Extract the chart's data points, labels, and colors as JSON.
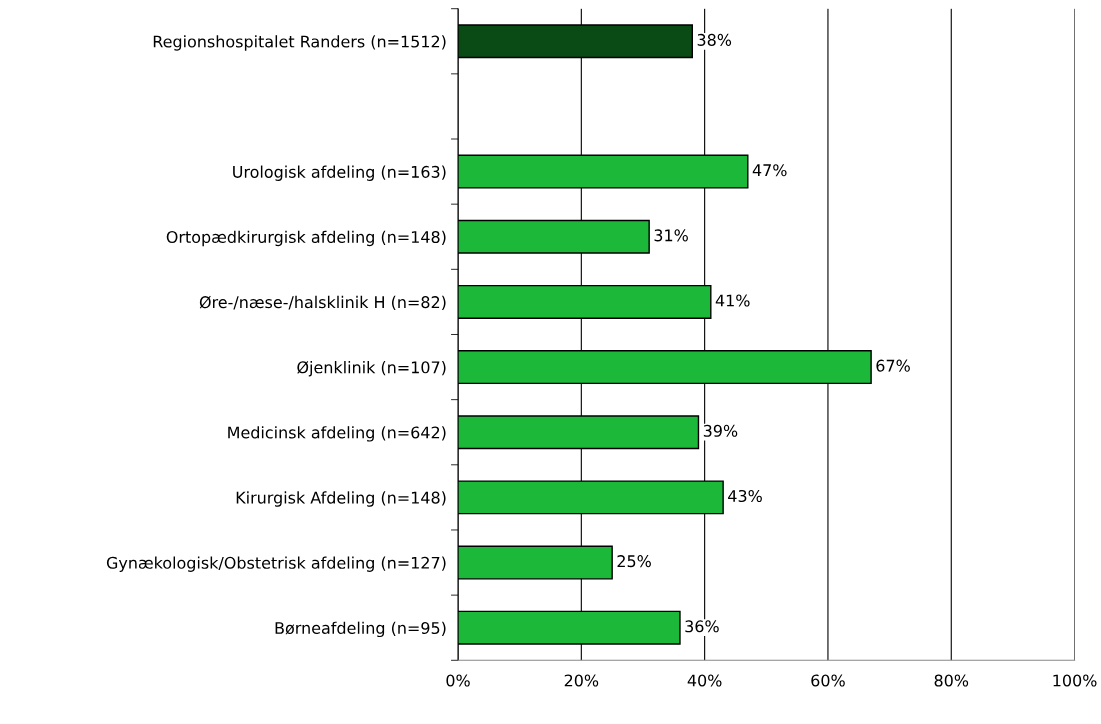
{
  "chart_data": {
    "type": "bar",
    "orientation": "horizontal",
    "categories": [
      "Regionshospitalet Randers (n=1512)",
      null,
      "Urologisk afdeling (n=163)",
      "Ortopædkirurgisk afdeling (n=148)",
      "Øre-/næse-/halsklinik H (n=82)",
      "Øjenklinik (n=107)",
      "Medicinsk afdeling (n=642)",
      "Kirurgisk Afdeling (n=148)",
      "Gynækologisk/Obstetrisk afdeling (n=127)",
      "Børneafdeling (n=95)"
    ],
    "values": [
      38,
      null,
      47,
      31,
      41,
      67,
      39,
      43,
      25,
      36
    ],
    "colors": [
      "#0a4a14",
      null,
      "#1cb83a",
      "#1cb83a",
      "#1cb83a",
      "#1cb83a",
      "#1cb83a",
      "#1cb83a",
      "#1cb83a",
      "#1cb83a"
    ],
    "value_labels": [
      "38%",
      null,
      "47%",
      "31%",
      "41%",
      "67%",
      "39%",
      "43%",
      "25%",
      "36%"
    ],
    "xlim": [
      0,
      100
    ],
    "xticks": [
      {
        "value": 0,
        "label": "0%"
      },
      {
        "value": 20,
        "label": "20%"
      },
      {
        "value": 40,
        "label": "40%"
      },
      {
        "value": 60,
        "label": "60%"
      },
      {
        "value": 80,
        "label": "80%"
      },
      {
        "value": 100,
        "label": "100%"
      }
    ],
    "grid": "x"
  }
}
